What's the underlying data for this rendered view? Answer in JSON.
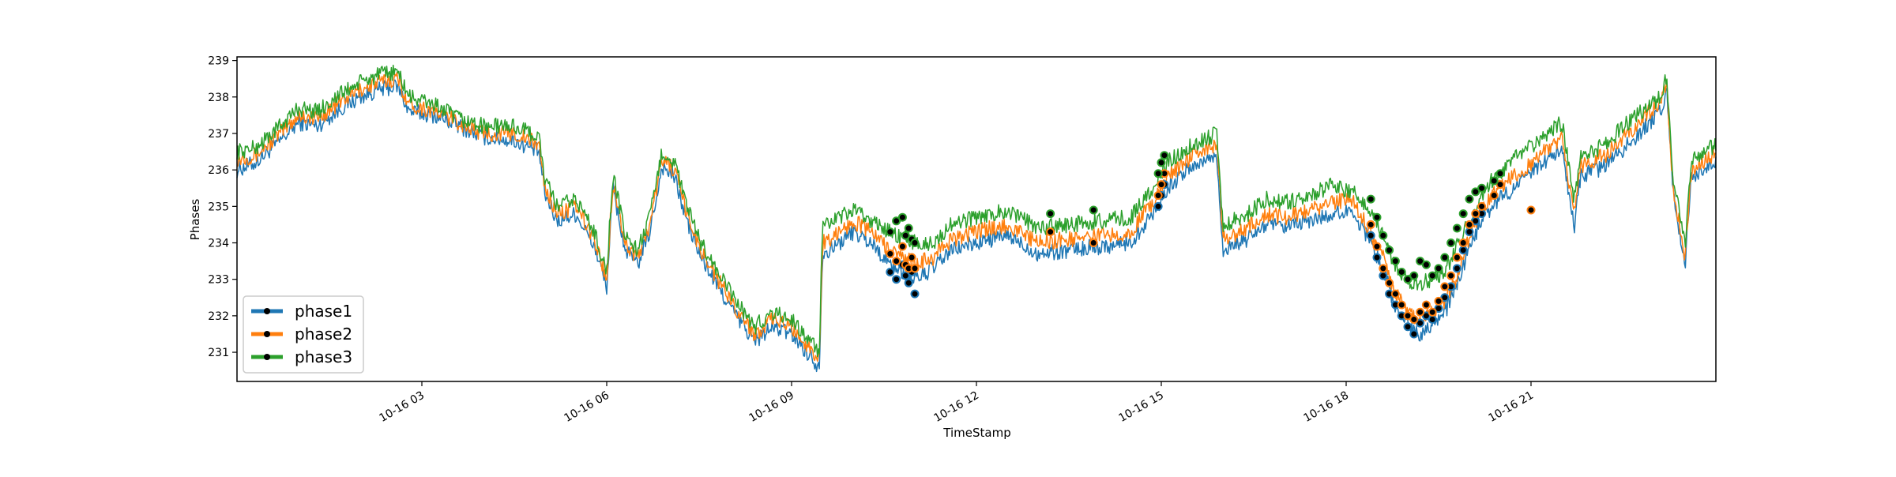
{
  "chart_data": {
    "type": "line",
    "title": "",
    "xlabel": "TimeStamp",
    "ylabel": "Phases",
    "x_start": "10-16 00:00",
    "x_end": "10-16 24:00",
    "xlim_hours": [
      0,
      24
    ],
    "ylim": [
      230.2,
      239.1
    ],
    "x_ticks": [
      {
        "hour": 3,
        "label": "10-16 03"
      },
      {
        "hour": 6,
        "label": "10-16 06"
      },
      {
        "hour": 9,
        "label": "10-16 09"
      },
      {
        "hour": 12,
        "label": "10-16 12"
      },
      {
        "hour": 15,
        "label": "10-16 15"
      },
      {
        "hour": 18,
        "label": "10-16 18"
      },
      {
        "hour": 21,
        "label": "10-16 21"
      }
    ],
    "y_ticks": [
      231,
      232,
      233,
      234,
      235,
      236,
      237,
      238,
      239
    ],
    "legend_position": "lower-left",
    "grid": false,
    "marker_outline_color": "#000000",
    "series": [
      {
        "name": "phase1",
        "color": "#1f77b4",
        "x_hours": [
          0,
          0.3,
          0.7,
          1.0,
          1.3,
          1.7,
          2.0,
          2.3,
          2.6,
          2.8,
          3.2,
          3.6,
          4.0,
          4.5,
          4.9,
          5.0,
          5.2,
          5.5,
          5.8,
          6.0,
          6.1,
          6.3,
          6.5,
          6.7,
          6.9,
          7.1,
          7.3,
          7.5,
          7.8,
          8.1,
          8.4,
          8.7,
          9.0,
          9.3,
          9.45,
          9.5,
          9.7,
          10.0,
          10.3,
          10.6,
          11.0,
          11.3,
          11.6,
          12.0,
          12.5,
          13.0,
          13.5,
          14.0,
          14.5,
          14.9,
          15.1,
          15.5,
          15.9,
          16.0,
          16.4,
          16.7,
          17.0,
          17.4,
          17.8,
          18.1,
          18.4,
          18.6,
          18.8,
          19.0,
          19.2,
          19.4,
          19.6,
          19.8,
          20.0,
          20.2,
          20.4,
          20.8,
          21.2,
          21.5,
          21.7,
          21.8,
          22.2,
          22.7,
          23.1,
          23.2,
          23.3,
          23.5,
          23.6,
          24.0
        ],
        "y": [
          236.0,
          236.2,
          236.8,
          237.3,
          237.2,
          237.7,
          238.0,
          238.2,
          238.3,
          237.6,
          237.5,
          237.2,
          236.9,
          236.8,
          236.5,
          235.3,
          234.6,
          234.8,
          233.9,
          232.8,
          235.5,
          233.8,
          233.4,
          234.3,
          236.1,
          235.8,
          234.6,
          233.7,
          232.8,
          232.0,
          231.3,
          231.7,
          231.5,
          230.9,
          230.6,
          233.7,
          233.9,
          234.3,
          234.0,
          233.4,
          233.0,
          233.3,
          233.8,
          234.0,
          234.2,
          233.7,
          233.8,
          233.9,
          234.0,
          234.9,
          235.5,
          236.1,
          236.4,
          233.8,
          234.1,
          234.5,
          234.4,
          234.6,
          234.8,
          234.9,
          234.0,
          233.3,
          232.2,
          231.8,
          231.5,
          231.8,
          232.1,
          232.8,
          233.9,
          234.6,
          235.1,
          235.6,
          236.2,
          236.6,
          234.4,
          235.8,
          236.1,
          236.9,
          237.6,
          238.2,
          235.4,
          233.4,
          235.8,
          236.3
        ]
      },
      {
        "name": "phase2",
        "color": "#ff7f0e",
        "x_hours": [
          0,
          0.3,
          0.7,
          1.0,
          1.3,
          1.7,
          2.0,
          2.3,
          2.6,
          2.8,
          3.2,
          3.6,
          4.0,
          4.5,
          4.9,
          5.0,
          5.2,
          5.5,
          5.8,
          6.0,
          6.1,
          6.3,
          6.5,
          6.7,
          6.9,
          7.1,
          7.3,
          7.5,
          7.8,
          8.1,
          8.4,
          8.7,
          9.0,
          9.3,
          9.45,
          9.5,
          9.7,
          10.0,
          10.3,
          10.6,
          11.0,
          11.3,
          11.6,
          12.0,
          12.5,
          13.0,
          13.5,
          14.0,
          14.5,
          14.9,
          15.1,
          15.5,
          15.9,
          16.0,
          16.4,
          16.7,
          17.0,
          17.4,
          17.8,
          18.1,
          18.4,
          18.6,
          18.8,
          19.0,
          19.2,
          19.4,
          19.6,
          19.8,
          20.0,
          20.2,
          20.4,
          20.8,
          21.2,
          21.5,
          21.7,
          21.8,
          22.2,
          22.7,
          23.1,
          23.2,
          23.3,
          23.5,
          23.6,
          24.0
        ],
        "y": [
          236.3,
          236.4,
          237.0,
          237.5,
          237.4,
          237.9,
          238.2,
          238.4,
          238.5,
          237.8,
          237.6,
          237.3,
          237.0,
          237.0,
          236.7,
          235.5,
          234.8,
          235.0,
          234.1,
          233.0,
          235.7,
          234.0,
          233.6,
          234.5,
          236.3,
          236.0,
          234.8,
          233.9,
          233.0,
          232.2,
          231.5,
          231.9,
          231.7,
          231.1,
          230.8,
          234.0,
          234.2,
          234.6,
          234.3,
          233.8,
          233.4,
          233.6,
          234.1,
          234.3,
          234.5,
          234.0,
          234.1,
          234.2,
          234.3,
          235.2,
          235.8,
          236.4,
          236.7,
          234.1,
          234.4,
          234.8,
          234.7,
          234.9,
          235.1,
          235.2,
          234.3,
          233.6,
          232.6,
          232.1,
          231.8,
          232.1,
          232.4,
          233.1,
          234.2,
          234.9,
          235.4,
          235.9,
          236.5,
          236.9,
          234.7,
          236.1,
          236.4,
          237.2,
          237.9,
          238.4,
          235.6,
          233.6,
          236.0,
          236.5
        ]
      },
      {
        "name": "phase3",
        "color": "#2ca02c",
        "x_hours": [
          0,
          0.3,
          0.7,
          1.0,
          1.3,
          1.7,
          2.0,
          2.3,
          2.6,
          2.8,
          3.2,
          3.6,
          4.0,
          4.5,
          4.9,
          5.0,
          5.2,
          5.5,
          5.8,
          6.0,
          6.1,
          6.3,
          6.5,
          6.7,
          6.9,
          7.1,
          7.3,
          7.5,
          7.8,
          8.1,
          8.4,
          8.7,
          9.0,
          9.3,
          9.45,
          9.5,
          9.7,
          10.0,
          10.3,
          10.6,
          11.0,
          11.3,
          11.6,
          12.0,
          12.5,
          13.0,
          13.5,
          14.0,
          14.5,
          14.9,
          15.1,
          15.5,
          15.9,
          16.0,
          16.4,
          16.7,
          17.0,
          17.4,
          17.8,
          18.1,
          18.4,
          18.6,
          18.8,
          19.0,
          19.2,
          19.4,
          19.6,
          19.8,
          20.0,
          20.2,
          20.4,
          20.8,
          21.2,
          21.5,
          21.7,
          21.8,
          22.2,
          22.7,
          23.1,
          23.2,
          23.3,
          23.5,
          23.6,
          24.0
        ],
        "y": [
          236.5,
          236.6,
          237.2,
          237.7,
          237.6,
          238.1,
          238.4,
          238.6,
          238.7,
          238.0,
          237.8,
          237.4,
          237.2,
          237.2,
          236.9,
          235.7,
          235.0,
          235.2,
          234.3,
          233.2,
          235.9,
          234.2,
          233.8,
          234.7,
          236.5,
          236.2,
          235.0,
          234.1,
          233.2,
          232.4,
          231.7,
          232.1,
          231.9,
          231.3,
          231.0,
          234.4,
          234.6,
          234.9,
          234.6,
          234.3,
          234.0,
          234.0,
          234.5,
          234.7,
          234.9,
          234.4,
          234.5,
          234.6,
          234.7,
          235.6,
          236.2,
          236.7,
          237.0,
          234.5,
          234.8,
          235.2,
          235.1,
          235.3,
          235.6,
          235.4,
          234.9,
          234.3,
          233.3,
          232.9,
          232.9,
          233.0,
          233.2,
          233.9,
          234.6,
          235.3,
          235.8,
          236.4,
          236.9,
          237.3,
          235.2,
          236.3,
          236.7,
          237.5,
          238.0,
          238.6,
          235.9,
          233.9,
          236.3,
          236.7
        ]
      }
    ],
    "anomaly_markers": {
      "phase1": {
        "x_hours": [
          10.6,
          10.7,
          10.8,
          10.85,
          10.9,
          10.95,
          11.0,
          14.95,
          15.0,
          15.05,
          18.4,
          18.5,
          18.6,
          18.7,
          18.8,
          18.9,
          19.0,
          19.1,
          19.2,
          19.3,
          19.4,
          19.5,
          19.6,
          19.7,
          19.8,
          19.9,
          20.0,
          20.1,
          20.2
        ],
        "y": [
          233.2,
          233.0,
          233.4,
          233.1,
          232.9,
          233.2,
          232.6,
          235.0,
          235.3,
          235.6,
          234.2,
          233.6,
          233.1,
          232.6,
          232.3,
          232.0,
          231.7,
          231.5,
          231.8,
          232.0,
          231.9,
          232.2,
          232.5,
          232.8,
          233.3,
          233.8,
          234.3,
          234.6,
          234.8
        ]
      },
      "phase2": {
        "x_hours": [
          10.6,
          10.7,
          10.8,
          10.85,
          10.9,
          10.95,
          11.0,
          13.2,
          13.9,
          14.95,
          15.0,
          15.05,
          18.4,
          18.5,
          18.6,
          18.7,
          18.8,
          18.9,
          19.0,
          19.1,
          19.2,
          19.3,
          19.4,
          19.5,
          19.6,
          19.7,
          19.8,
          19.9,
          20.0,
          20.1,
          20.2,
          20.4,
          20.5,
          21.0
        ],
        "y": [
          233.7,
          233.5,
          233.9,
          233.4,
          233.3,
          233.6,
          233.3,
          234.3,
          234.0,
          235.3,
          235.6,
          235.9,
          234.5,
          233.9,
          233.3,
          232.9,
          232.6,
          232.3,
          232.0,
          231.9,
          232.1,
          232.3,
          232.1,
          232.4,
          232.8,
          233.1,
          233.6,
          234.0,
          234.5,
          234.8,
          235.0,
          235.3,
          235.6,
          234.9
        ]
      },
      "phase3": {
        "x_hours": [
          10.6,
          10.7,
          10.8,
          10.85,
          10.9,
          10.95,
          11.0,
          13.2,
          13.9,
          14.95,
          15.0,
          15.05,
          18.4,
          18.5,
          18.6,
          18.7,
          18.8,
          18.9,
          19.0,
          19.1,
          19.2,
          19.3,
          19.4,
          19.5,
          19.6,
          19.7,
          19.8,
          19.9,
          20.0,
          20.1,
          20.2,
          20.4,
          20.5
        ],
        "y": [
          234.3,
          234.6,
          234.7,
          234.2,
          234.4,
          234.1,
          234.0,
          234.8,
          234.9,
          235.9,
          236.2,
          236.4,
          235.2,
          234.7,
          234.2,
          233.8,
          233.5,
          233.2,
          233.0,
          233.1,
          233.5,
          233.4,
          233.1,
          233.3,
          233.6,
          234.0,
          234.4,
          234.8,
          235.2,
          235.4,
          235.5,
          235.7,
          235.9
        ]
      }
    }
  }
}
